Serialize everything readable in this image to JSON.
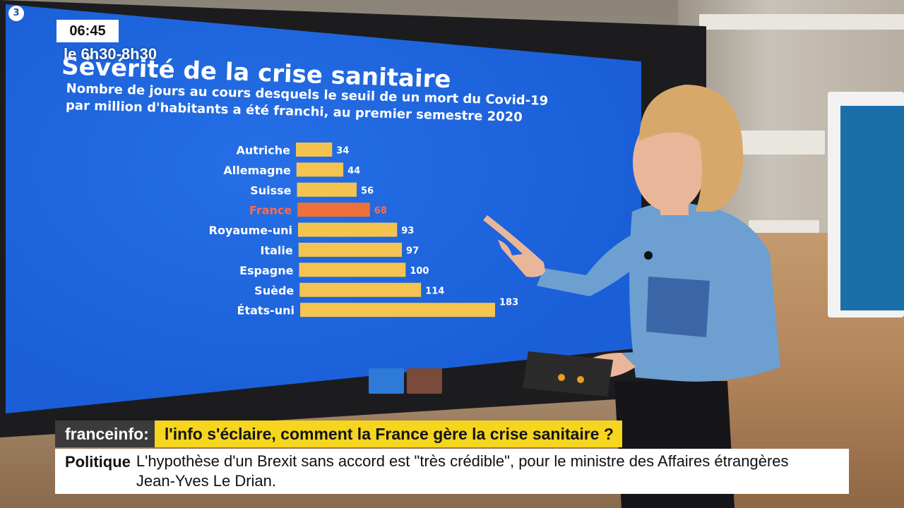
{
  "broadcast": {
    "logo_glyph": "3",
    "clock": "06:45",
    "show_time": "le 6h30-8h30",
    "brand": "franceinfo:",
    "headline": "l'info s'éclaire, comment la France gère la crise sanitaire ?",
    "ticker_category": "Politique",
    "ticker_text": "L'hypothèse d'un Brexit sans accord est \"très crédible\", pour le ministre des Affaires étrangères Jean-Yves Le Drian."
  },
  "colors": {
    "screen_blue": "#1a5fd8",
    "bar_default": "#f4c350",
    "bar_highlight": "#f0703a",
    "label_default": "#ffffff",
    "label_highlight": "#ff6b4a",
    "headline_yellow": "#f6d51f",
    "brand_gray": "#3b3b3b"
  },
  "chart_data": {
    "type": "bar",
    "orientation": "horizontal",
    "title": "Sévérité de la crise sanitaire",
    "subtitle_lines": [
      "Nombre de jours au cours desquels le seuil de un mort du Covid-19",
      "par million d'habitants a été franchi, au premier semestre 2020"
    ],
    "categories": [
      "Autriche",
      "Allemagne",
      "Suisse",
      "France",
      "Royaume-uni",
      "Italie",
      "Espagne",
      "Suède",
      "États-uni"
    ],
    "values": [
      34,
      44,
      56,
      68,
      93,
      97,
      100,
      114,
      183
    ],
    "highlight": "France",
    "xlim": [
      0,
      183
    ],
    "grid": false,
    "legend": "none"
  }
}
